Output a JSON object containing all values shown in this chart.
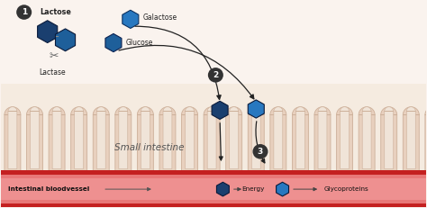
{
  "bg_color": "#faf3ee",
  "intestine_bg": "#f5ebe0",
  "villus_color": "#e8d0be",
  "villus_outline": "#cdb09a",
  "villus_inner": "#f0e4d8",
  "blood_vessel_red": "#c42020",
  "blood_vessel_pink": "#e87878",
  "blood_vessel_dark": "#a01010",
  "hex_dark": "#1a3f6f",
  "hex_mid": "#1e5f9a",
  "hex_bright": "#2878c0",
  "circle_color": "#333333",
  "circle_text": "#ffffff",
  "arrow_color": "#222222",
  "label_color": "#222222",
  "small_intestine_text": "Small intestine",
  "blood_vessel_text": "Intestinal bloodvessel",
  "energy_text": "Energy",
  "glyco_text": "Glycoproteins",
  "lactose_text": "Lactose",
  "lactase_text": "Lactase",
  "galactose_text": "Galactose",
  "glucose_text": "Glucose",
  "fig_w": 4.74,
  "fig_h": 2.31,
  "dpi": 100
}
